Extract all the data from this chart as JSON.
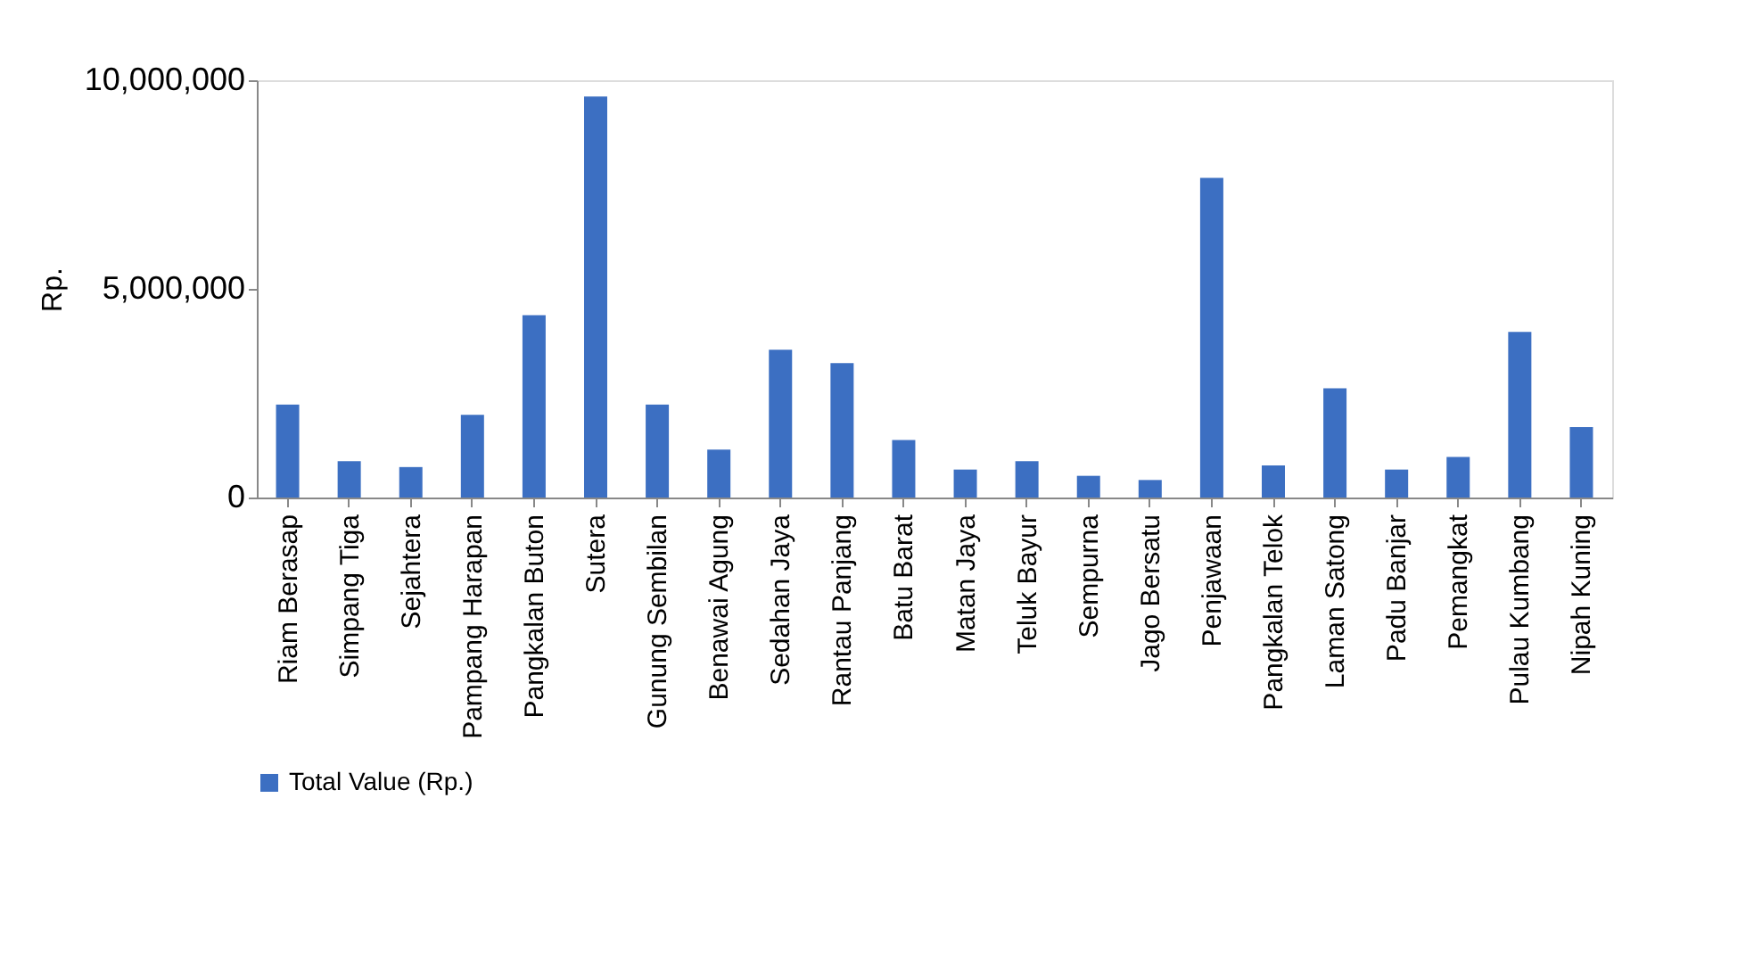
{
  "chart_data": {
    "type": "bar",
    "categories": [
      "Riam Berasap",
      "Simpang Tiga",
      "Sejahtera",
      "Pampang Harapan",
      "Pangkalan Buton",
      "Sutera",
      "Gunung Sembilan",
      "Benawai Agung",
      "Sedahan Jaya",
      "Rantau Panjang",
      "Batu Barat",
      "Matan Jaya",
      "Teluk Bayur",
      "Sempurna",
      "Jago Bersatu",
      "Penjawaan",
      "Pangkalan Telok",
      "Laman Satong",
      "Padu Banjar",
      "Pemangkat",
      "Pulau Kumbang",
      "Nipah Kuning"
    ],
    "series": [
      {
        "name": "Total Value (Rp.)",
        "color": "#3c6fc2",
        "values": [
          2230000,
          870000,
          730000,
          1980000,
          4370000,
          9610000,
          2230000,
          1150000,
          3540000,
          3220000,
          1380000,
          670000,
          870000,
          520000,
          420000,
          7660000,
          770000,
          2620000,
          670000,
          970000,
          3970000,
          1690000
        ]
      }
    ],
    "ylabel": "Rp.",
    "ylim": [
      0,
      10000000
    ],
    "yticks": [
      {
        "value": 0,
        "label": "0"
      },
      {
        "value": 5000000,
        "label": "5,000,000"
      },
      {
        "value": 10000000,
        "label": "10,000,000"
      }
    ],
    "grid": false,
    "legend": "bottom"
  }
}
